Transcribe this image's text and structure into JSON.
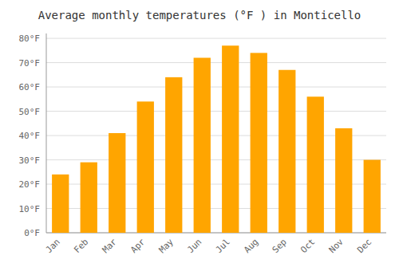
{
  "chart_data": {
    "type": "bar",
    "title": "Average monthly temperatures (°F ) in Monticello",
    "categories": [
      "Jan",
      "Feb",
      "Mar",
      "Apr",
      "May",
      "Jun",
      "Jul",
      "Aug",
      "Sep",
      "Oct",
      "Nov",
      "Dec"
    ],
    "values": [
      24,
      29,
      41,
      54,
      64,
      72,
      77,
      74,
      67,
      56,
      43,
      30
    ],
    "color": "#FFA500",
    "ylim": [
      0,
      82
    ],
    "yticks": [
      {
        "value": 0,
        "label": "0°F"
      },
      {
        "value": 10,
        "label": "10°F"
      },
      {
        "value": 20,
        "label": "20°F"
      },
      {
        "value": 30,
        "label": "30°F"
      },
      {
        "value": 40,
        "label": "40°F"
      },
      {
        "value": 50,
        "label": "50°F"
      },
      {
        "value": 60,
        "label": "60°F"
      },
      {
        "value": 70,
        "label": "70°F"
      },
      {
        "value": 80,
        "label": "80°F"
      }
    ],
    "grid": true
  }
}
